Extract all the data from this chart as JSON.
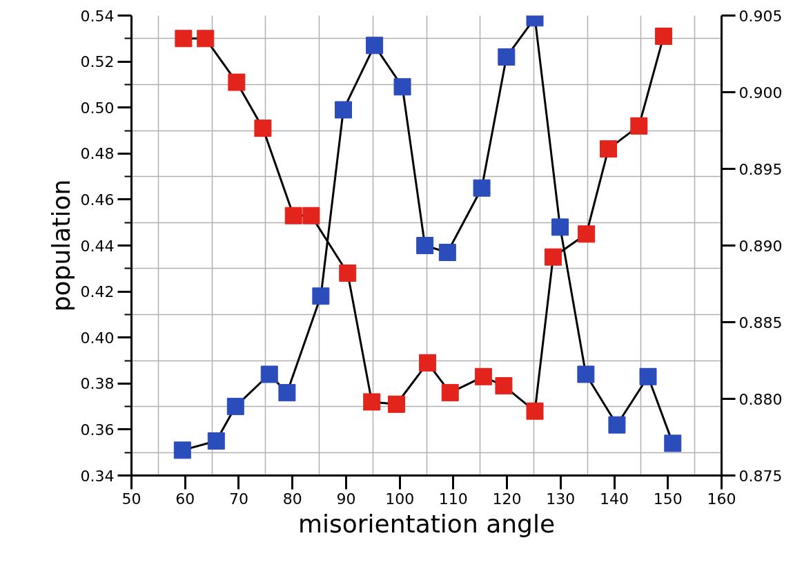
{
  "chart_data": {
    "type": "line",
    "xlabel": "misorientation angle",
    "ylabel": "population",
    "marker": "square",
    "grid": true,
    "xlim": [
      50,
      160
    ],
    "xticks": [
      50,
      60,
      70,
      80,
      90,
      100,
      110,
      120,
      130,
      140,
      150,
      160
    ],
    "ylim": [
      0.34,
      0.54
    ],
    "yticks": [
      {
        "value": 0.34,
        "label": "0.34"
      },
      {
        "value": 0.36,
        "label": "0.36"
      },
      {
        "value": 0.38,
        "label": "0.38"
      },
      {
        "value": 0.4,
        "label": "0.40"
      },
      {
        "value": 0.42,
        "label": "0.42"
      },
      {
        "value": 0.44,
        "label": "0.44"
      },
      {
        "value": 0.46,
        "label": "0.46"
      },
      {
        "value": 0.48,
        "label": "0.48"
      },
      {
        "value": 0.5,
        "label": "0.50"
      },
      {
        "value": 0.52,
        "label": "0.52"
      },
      {
        "value": 0.54,
        "label": "0.54"
      }
    ],
    "y2lim": [
      0.875,
      0.905
    ],
    "y2ticks": [
      {
        "value": 0.875,
        "label": "0.875"
      },
      {
        "value": 0.88,
        "label": "0.880"
      },
      {
        "value": 0.885,
        "label": "0.885"
      },
      {
        "value": 0.89,
        "label": "0.890"
      },
      {
        "value": 0.895,
        "label": "0.895"
      },
      {
        "value": 0.9,
        "label": "0.900"
      },
      {
        "value": 0.905,
        "label": "0.905"
      }
    ],
    "series": [
      {
        "color": "#e3241c",
        "x": [
          59.7,
          63.8,
          69.6,
          74.5,
          80.2,
          83.5,
          90.3,
          94.8,
          99.4,
          105.2,
          109.4,
          115.6,
          119.4,
          125.2,
          128.6,
          134.8,
          138.9,
          144.6,
          149.2
        ],
        "values": [
          0.53,
          0.53,
          0.511,
          0.491,
          0.453,
          0.453,
          0.428,
          0.372,
          0.371,
          0.389,
          0.376,
          0.383,
          0.379,
          0.368,
          0.435,
          0.445,
          0.482,
          0.492,
          0.531
        ]
      },
      {
        "color": "#2b4dbb",
        "x": [
          59.5,
          65.8,
          69.4,
          75.7,
          79.0,
          85.3,
          89.5,
          95.3,
          100.5,
          104.7,
          108.9,
          115.3,
          119.9,
          125.2,
          129.9,
          134.7,
          140.5,
          146.3,
          150.9
        ],
        "values": [
          0.351,
          0.355,
          0.37,
          0.384,
          0.376,
          0.418,
          0.499,
          0.527,
          0.509,
          0.44,
          0.437,
          0.465,
          0.522,
          0.539,
          0.448,
          0.384,
          0.362,
          0.383,
          0.354
        ]
      }
    ]
  }
}
